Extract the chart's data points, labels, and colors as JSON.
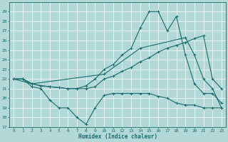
{
  "xlabel": "Humidex (Indice chaleur)",
  "bg_color": "#b2d8d8",
  "grid_color": "#ffffff",
  "line_color": "#1a6b6b",
  "xlim": [
    -0.5,
    23.5
  ],
  "ylim": [
    17,
    30
  ],
  "yticks": [
    17,
    18,
    19,
    20,
    21,
    22,
    23,
    24,
    25,
    26,
    27,
    28,
    29
  ],
  "xticks": [
    0,
    1,
    2,
    3,
    4,
    5,
    6,
    7,
    8,
    9,
    10,
    11,
    12,
    13,
    14,
    15,
    16,
    17,
    18,
    19,
    20,
    21,
    22,
    23
  ],
  "series": [
    {
      "x": [
        0,
        1,
        2,
        3,
        4,
        5,
        6,
        7,
        8,
        9,
        10,
        11,
        12,
        13,
        14,
        15,
        16,
        17,
        18,
        19,
        20,
        21,
        22,
        23
      ],
      "y": [
        22,
        22,
        21.2,
        21,
        19.8,
        19,
        19,
        18,
        17.3,
        19,
        20.3,
        20.5,
        20.5,
        20.5,
        20.5,
        20.5,
        20.2,
        20,
        19.5,
        19.3,
        19.3,
        19,
        19,
        19
      ]
    },
    {
      "x": [
        0,
        1,
        2,
        3,
        4,
        5,
        6,
        7,
        8,
        9,
        10,
        11,
        12,
        13,
        14,
        15,
        16,
        17,
        18,
        19,
        20,
        21,
        22,
        23
      ],
      "y": [
        22,
        22,
        21.5,
        21.3,
        21.2,
        21.1,
        21,
        21,
        21,
        21.2,
        22,
        22.3,
        22.8,
        23.2,
        23.8,
        24.2,
        24.8,
        25.2,
        25.5,
        25.8,
        26.2,
        26.5,
        22,
        21
      ]
    },
    {
      "x": [
        0,
        1,
        2,
        3,
        4,
        5,
        6,
        7,
        8,
        9,
        10,
        11,
        12,
        13,
        14,
        15,
        16,
        17,
        18,
        19,
        20,
        21,
        22,
        23
      ],
      "y": [
        22,
        22,
        21.5,
        21.3,
        21.2,
        21.1,
        21,
        21,
        21.3,
        22,
        23,
        23.5,
        24.5,
        25.2,
        27.3,
        29,
        29,
        27,
        28.5,
        24.5,
        21.5,
        20.5,
        20.5,
        19.5
      ]
    },
    {
      "x": [
        0,
        2,
        10,
        14,
        19,
        20,
        21,
        22,
        23
      ],
      "y": [
        22,
        21.5,
        22.5,
        25.2,
        26.3,
        24.5,
        22,
        21,
        19
      ]
    }
  ]
}
